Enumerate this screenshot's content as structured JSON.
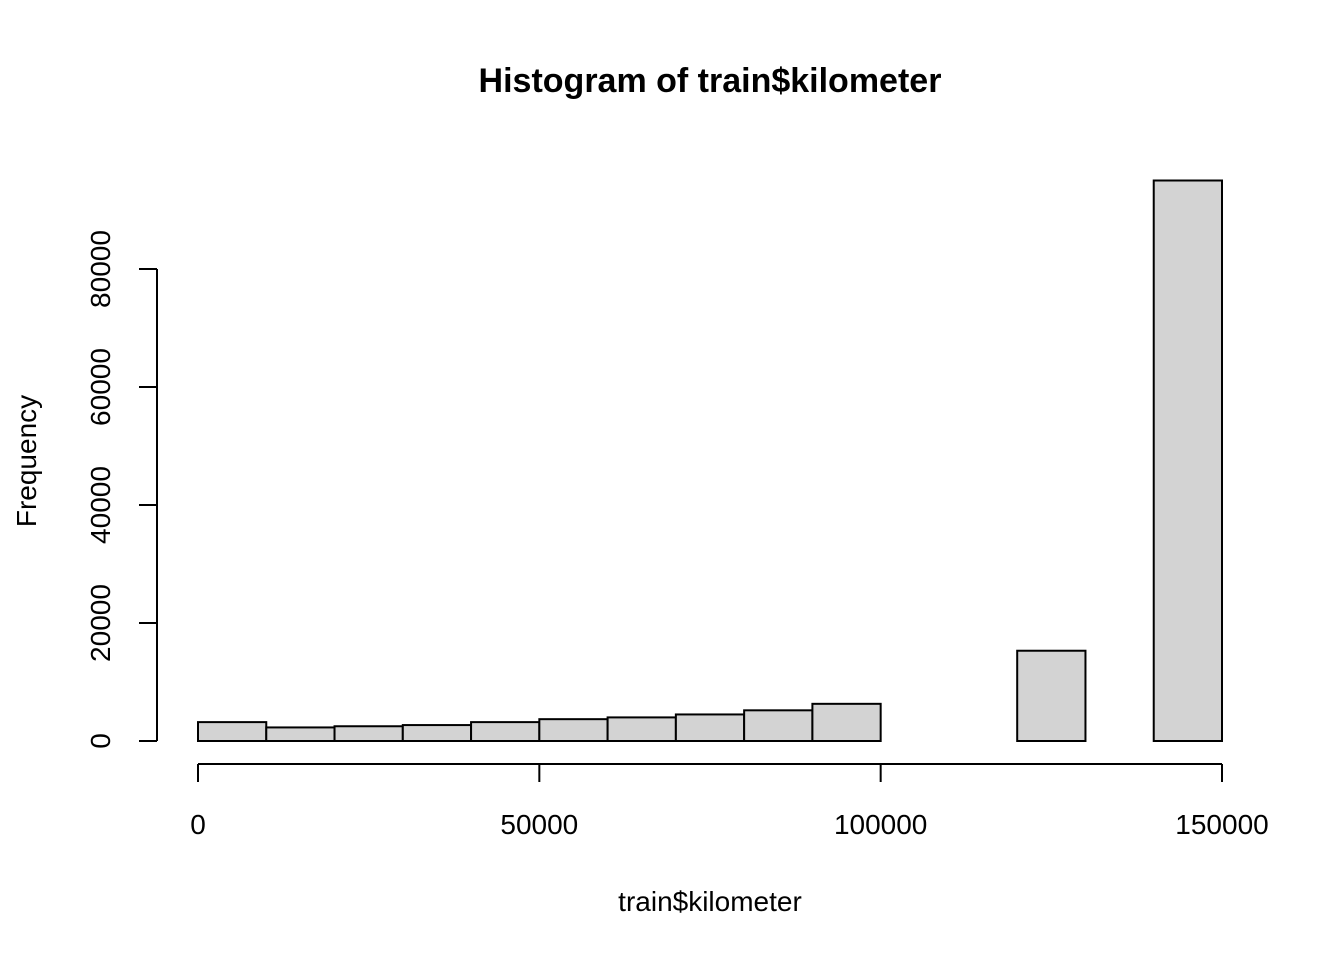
{
  "chart_data": {
    "type": "bar",
    "title": "Histogram of train$kilometer",
    "xlabel": "train$kilometer",
    "ylabel": "Frequency",
    "xlim": [
      0,
      150000
    ],
    "ylim": [
      0,
      95000
    ],
    "bin_width": 10000,
    "x_ticks": [
      0,
      50000,
      100000,
      150000
    ],
    "x_tick_labels": [
      "0",
      "50000",
      "100000",
      "150000"
    ],
    "y_ticks": [
      0,
      20000,
      40000,
      60000,
      80000
    ],
    "y_tick_labels": [
      "0",
      "20000",
      "40000",
      "60000",
      "80000"
    ],
    "bins": [
      {
        "from": 0,
        "to": 10000,
        "count": 3200
      },
      {
        "from": 10000,
        "to": 20000,
        "count": 2300
      },
      {
        "from": 20000,
        "to": 30000,
        "count": 2500
      },
      {
        "from": 30000,
        "to": 40000,
        "count": 2700
      },
      {
        "from": 40000,
        "to": 50000,
        "count": 3200
      },
      {
        "from": 50000,
        "to": 60000,
        "count": 3700
      },
      {
        "from": 60000,
        "to": 70000,
        "count": 4000
      },
      {
        "from": 70000,
        "to": 80000,
        "count": 4500
      },
      {
        "from": 80000,
        "to": 90000,
        "count": 5200
      },
      {
        "from": 90000,
        "to": 100000,
        "count": 6300
      },
      {
        "from": 100000,
        "to": 110000,
        "count": 0
      },
      {
        "from": 110000,
        "to": 120000,
        "count": 0
      },
      {
        "from": 120000,
        "to": 130000,
        "count": 15300
      },
      {
        "from": 130000,
        "to": 140000,
        "count": 0
      },
      {
        "from": 140000,
        "to": 150000,
        "count": 95000
      }
    ]
  }
}
